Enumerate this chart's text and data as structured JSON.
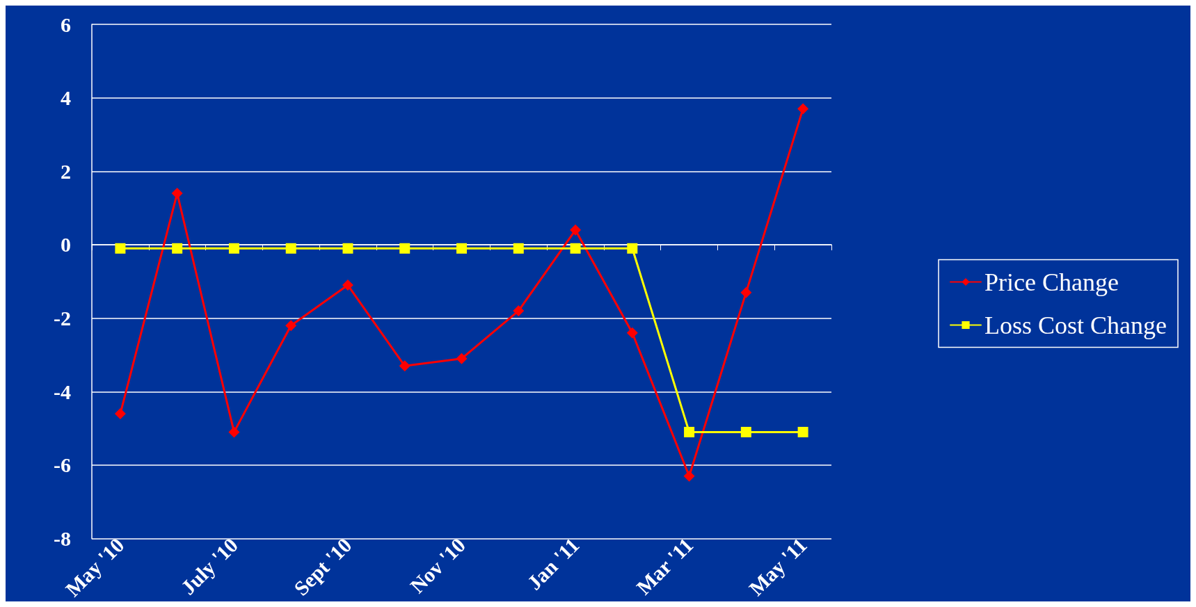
{
  "chart_data": {
    "type": "line",
    "categories": [
      "May '10",
      null,
      "July '10",
      null,
      "Sept '10",
      null,
      "Nov '10",
      null,
      "Jan '11",
      null,
      "Mar '11",
      null,
      "May '11"
    ],
    "series": [
      {
        "name": "Price Change",
        "color": "#ff0000",
        "marker": "diamond",
        "values": [
          -4.6,
          1.4,
          -5.1,
          -2.2,
          -1.1,
          -3.3,
          -3.1,
          -1.8,
          0.4,
          -2.4,
          -6.3,
          -1.3,
          3.7
        ]
      },
      {
        "name": "Loss Cost Change",
        "color": "#ffff00",
        "marker": "square",
        "values": [
          -0.1,
          -0.1,
          -0.1,
          -0.1,
          -0.1,
          -0.1,
          -0.1,
          -0.1,
          -0.1,
          -0.1,
          -5.1,
          -5.1,
          -5.1
        ]
      }
    ],
    "ylim": [
      -8,
      6
    ],
    "yticks": [
      -8,
      -6,
      -4,
      -2,
      0,
      2,
      4,
      6
    ],
    "grid": "y",
    "legend": "right",
    "line_style": "solid"
  }
}
